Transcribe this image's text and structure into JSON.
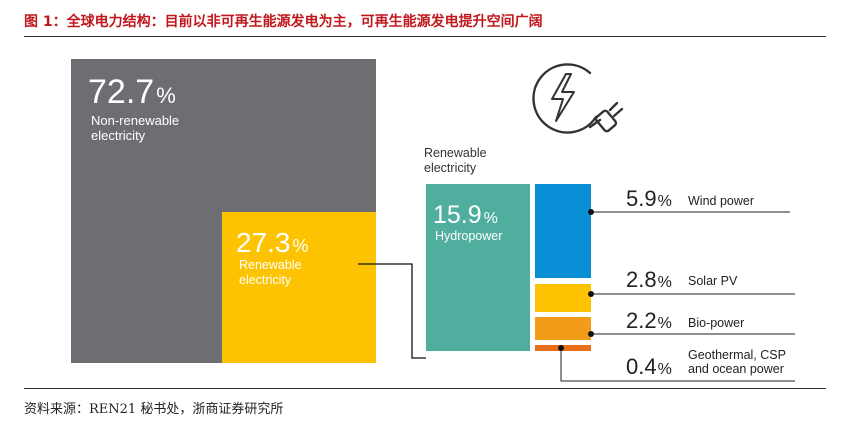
{
  "figure_title": "图 1：全球电力结构：目前以非可再生能源发电为主，可再生能源发电提升空间广阔",
  "source_note": "资料来源：REN21 秘书处，浙商证券研究所",
  "icon": "plug-lightning-icon",
  "colors": {
    "title_red": "#c0171d",
    "non_renewable": "#6d6e71",
    "renewable": "#fdc300",
    "hydropower": "#4fae9e",
    "wind": "#0a8fd6",
    "solar": "#fdc300",
    "bio": "#f39c1a",
    "geothermal": "#e8701a"
  },
  "chart_data": {
    "type": "treemap",
    "unit": "%",
    "level1": [
      {
        "name": "Non-renewable electricity",
        "pct_text": "72.7",
        "value": 72.7
      },
      {
        "name": "Renewable electricity",
        "pct_text": "27.3",
        "value": 27.3
      }
    ],
    "renewable_breakdown_title": "Renewable electricity",
    "renewable_breakdown": [
      {
        "name": "Hydropower",
        "pct_text": "15.9",
        "value": 15.9
      },
      {
        "name": "Wind power",
        "pct_text": "5.9",
        "value": 5.9
      },
      {
        "name": "Solar PV",
        "pct_text": "2.8",
        "value": 2.8
      },
      {
        "name": "Bio-power",
        "pct_text": "2.2",
        "value": 2.2
      },
      {
        "name": "Geothermal, CSP and ocean power",
        "label_lines": [
          "Geothermal, CSP",
          "and ocean power"
        ],
        "pct_text": "0.4",
        "value": 0.4
      }
    ]
  }
}
